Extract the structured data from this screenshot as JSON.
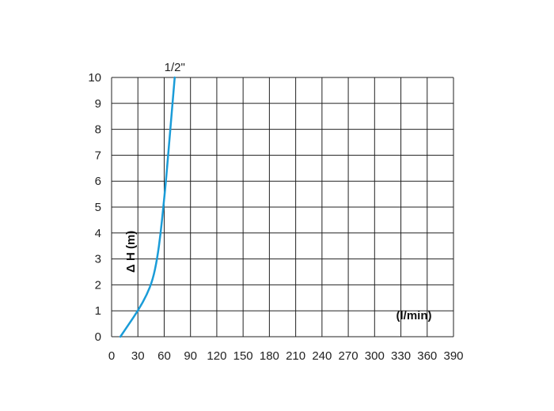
{
  "chart_data": {
    "type": "line",
    "xlabel": "(l/min)",
    "ylabel": "Δ H (m)",
    "xlim": [
      0,
      390
    ],
    "ylim": [
      0,
      10
    ],
    "grid": true,
    "x_ticks": [
      "0",
      "30",
      "60",
      "90",
      "120",
      "150",
      "180",
      "210",
      "240",
      "270",
      "300",
      "330",
      "360",
      "390"
    ],
    "y_ticks": [
      "0",
      "1",
      "2",
      "3",
      "4",
      "5",
      "6",
      "7",
      "8",
      "9",
      "10"
    ],
    "series": [
      {
        "name": "1/2\"",
        "color": "#1a9cd8",
        "points": [
          {
            "x": 10,
            "y": 0
          },
          {
            "x": 20,
            "y": 0.5
          },
          {
            "x": 30,
            "y": 1
          },
          {
            "x": 40,
            "y": 1.6
          },
          {
            "x": 47,
            "y": 2.2
          },
          {
            "x": 52,
            "y": 3
          },
          {
            "x": 56,
            "y": 4
          },
          {
            "x": 59,
            "y": 5
          },
          {
            "x": 62,
            "y": 6
          },
          {
            "x": 67,
            "y": 8
          },
          {
            "x": 72,
            "y": 10
          }
        ]
      }
    ]
  }
}
